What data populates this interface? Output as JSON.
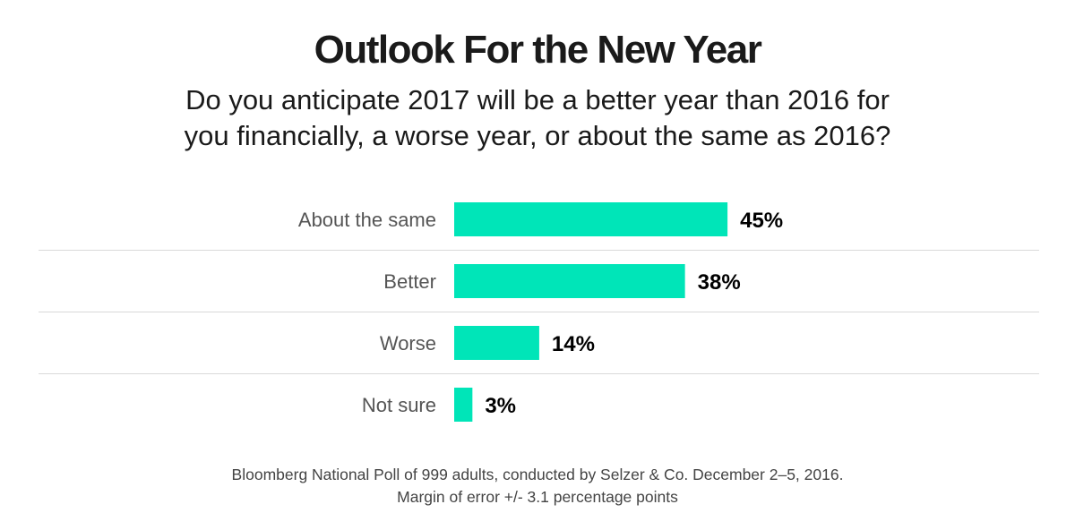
{
  "colors": {
    "bar": "#00e5b8",
    "divider": "#d9d9d9",
    "title": "#1a1a1a",
    "category_label": "#555555",
    "value_label": "#000000"
  },
  "chart_data": {
    "type": "bar",
    "orientation": "horizontal",
    "title": "Outlook For the New Year",
    "subtitle_lines": [
      "Do you anticipate 2017 will be a better year than 2016 for",
      "you financially, a worse year, or about the same as 2016?"
    ],
    "categories": [
      "About the same",
      "Better",
      "Worse",
      "Not sure"
    ],
    "values": [
      45,
      38,
      14,
      3
    ],
    "value_labels": [
      "45%",
      "38%",
      "14%",
      "3%"
    ],
    "unit": "%",
    "xlim": [
      0,
      100
    ],
    "grid": false,
    "legend": "none",
    "footnote_lines": [
      "Bloomberg National Poll of 999 adults, conducted by Selzer & Co. December 2–5, 2016.",
      "Margin of error +/- 3.1 percentage points"
    ]
  }
}
